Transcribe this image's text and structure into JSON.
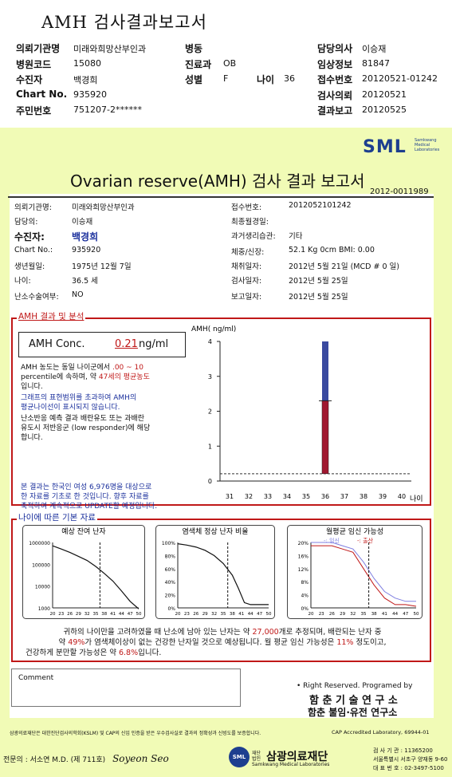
{
  "top_title": "AMH 검사결과보고서",
  "header": {
    "rows": [
      {
        "l1": "의뢰기관명",
        "v1": "미래와희망산부인과",
        "l2": "병동",
        "v2": "",
        "l3": "담당의사",
        "v3": "이승재"
      },
      {
        "l1": "병원코드",
        "v1": "15080",
        "l2": "진료과",
        "v2": "OB",
        "l3": "임상정보",
        "v3": "81847"
      },
      {
        "l1": "수진자",
        "v1": "백경희",
        "l2": "성별",
        "v2": "F",
        "l2b": "나이",
        "v2b": "36",
        "l3": "접수번호",
        "v3": "20120521-01242"
      },
      {
        "l1": "Chart No.",
        "v1": "935920",
        "l2": "",
        "v2": "",
        "l3": "검사의뢰",
        "v3": "20120521"
      },
      {
        "l1": "주민번호",
        "v1": "751207-2******",
        "l2": "",
        "v2": "",
        "l3": "결과보고",
        "v3": "20120525"
      }
    ]
  },
  "logo": {
    "text": "SML",
    "sub1": "Samkwang",
    "sub2": "Medical",
    "sub3": "Laboratories"
  },
  "report": {
    "title": "Ovarian reserve(AMH) 검사 결과 보고서",
    "number": "2012-0011989",
    "left": [
      {
        "label": "의뢰기관명:",
        "value": "미래와희망산부인과"
      },
      {
        "label": "담당의:",
        "value": "이승재"
      },
      {
        "label": "수진자:",
        "value": "백경희"
      },
      {
        "label": "Chart No.:",
        "value": "935920"
      },
      {
        "label": "생년월일:",
        "value": "1975년 12월 7일"
      },
      {
        "label": "나이:",
        "value": "36.5 세"
      },
      {
        "label": "난소수술여부:",
        "value": "NO"
      }
    ],
    "right": [
      {
        "label": "접수번호:",
        "value": "2012052101242"
      },
      {
        "label": "최종월경일:",
        "value": ""
      },
      {
        "label": "과거생리습관:",
        "value": "기타"
      },
      {
        "label": "체중/신장:",
        "value": "52.1 Kg      0cm   BMI:  0.00"
      },
      {
        "label": "채취일자:",
        "value": "2012년 5월 21일   (MCD # 0 일)"
      },
      {
        "label": "검사일자:",
        "value": "2012년 5월 25일"
      },
      {
        "label": "보고일자:",
        "value": "2012년 5월 25일"
      }
    ]
  },
  "amh": {
    "section_title": "AMH 결과 및 분석",
    "conc_label": "AMH Conc.",
    "conc_value": "0.21",
    "conc_unit": "ng/ml",
    "p1a": "AMH 농도는 동일 나이군에서",
    "p1b": ".00 ~ 10",
    "p1c": "percentile에 속하며, 약",
    "p1d": "47세의 평균농도",
    "p1e": "입니다.",
    "p2a": "그래프의 표현범위를 초과하여 AMH의",
    "p2b": "평균나이선이 표시되지 않습니다.",
    "p3a": "난소반응 예측 결과 배란유도 또는 과배란",
    "p3b": "유도시 저반응군 (low responder)에 해당",
    "p3c": "합니다.",
    "p4a": "본 결과는 한국인 여성 6,976명을 대상으로",
    "p4b": "한 자료를 기초로 한 것입니다. 향후 자료를",
    "p4c": "축적하여 계속적으로 UPDATE할 예정입니다."
  },
  "age_section": {
    "title": "나이에 따른 기본 자료",
    "chart1_title": "예상 잔여 난자",
    "chart2_title": "염색체 정상 난자 비율",
    "chart3_title": "월평균 임신 가능성",
    "chart3_legend": "-: 임신- -: 출산",
    "s1a": "귀하의 나이만을 고려하였을 때 난소에 남아 있는 난자는 약",
    "s1b": "27,000",
    "s1c": "개로 추정되며, 배란되는 난자 중",
    "s2a": "약",
    "s2b": "49%",
    "s2c": "가 염색체이상이 없는 건강한 난자일 것으로 예상됩니다. 월 평균 임신 가능성은",
    "s2d": "11%",
    "s2e": "정도이고,",
    "s3a": "건강하게 분만할 가능성은 약",
    "s3b": "6.8%",
    "s3c": "입니다."
  },
  "comment_label": "Comment",
  "rights": "• Right Reserved. Programed by",
  "lab1": "함 춘 기 술 연 구 소",
  "lab2": "함춘 불임·유전 연구소",
  "fine_print": "삼광의료재단은 대한진단검사의학회(KSLM) 및 CAP의 신임 인증을 받은 우수검사실로 결과의 정확성과 신빙도를 보증합니다.",
  "cap": "CAP  Accredited  Laboratory,  69944-01",
  "doctor": "전문의 : 서소연 M.D. (제 711호)",
  "foundation": "삼광의료재단",
  "foundation_sub": "Samkwang Medical Laboratories",
  "foundation_prefix": "재단법인",
  "contact1": "검 사 기 관 : 11365200",
  "contact2": "서울특별시 서초구 양재동 9-60",
  "contact3": "대 표 번 호 : 02-3497-5100",
  "chart_data": [
    {
      "type": "bar",
      "ylabel": "AMH( ng/ml)",
      "xlabel": "나이",
      "ylim": [
        0,
        4
      ],
      "yticks": [
        0,
        1,
        2,
        3,
        4
      ],
      "categories": [
        "31",
        "32",
        "33",
        "34",
        "35",
        "36",
        "37",
        "38",
        "39",
        "40"
      ],
      "series": [
        {
          "values": [
            null,
            null,
            null,
            null,
            null,
            2.3,
            null,
            null,
            null,
            null
          ],
          "color": "#a01830"
        },
        {
          "values": [
            null,
            null,
            null,
            null,
            null,
            4.0,
            null,
            null,
            null,
            null
          ],
          "color": "#3a4aa0"
        }
      ],
      "reference_line": 0.21,
      "bar_split": 2.3
    },
    {
      "type": "line",
      "title": "예상 잔여 난자",
      "yscale": "log",
      "yticks": [
        "1000000",
        "100000",
        "10000",
        "1000"
      ],
      "xticks": [
        "20",
        "23",
        "26",
        "29",
        "32",
        "35",
        "38",
        "41",
        "44",
        "47",
        "50"
      ],
      "x": [
        20,
        23,
        26,
        29,
        32,
        35,
        38,
        41,
        44,
        47,
        50
      ],
      "y": [
        700000,
        500000,
        350000,
        230000,
        150000,
        80000,
        38000,
        17000,
        6000,
        2000,
        900
      ],
      "marker_x": 36.5
    },
    {
      "type": "line",
      "title": "염색체 정상 난자 비율",
      "yticks": [
        "100%",
        "80%",
        "60%",
        "40%",
        "20%",
        "0%"
      ],
      "xticks": [
        "20",
        "23",
        "26",
        "29",
        "32",
        "35",
        "38",
        "41",
        "44",
        "47",
        "50"
      ],
      "x": [
        20,
        23,
        26,
        29,
        32,
        35,
        38,
        40,
        42,
        44,
        47,
        50
      ],
      "y": [
        98,
        96,
        93,
        88,
        80,
        68,
        50,
        30,
        8,
        5,
        5,
        5
      ],
      "marker_x": 36.5
    },
    {
      "type": "line",
      "title": "월평균 임신 가능성",
      "yticks": [
        "20%",
        "16%",
        "12%",
        "8%",
        "4%",
        "0%"
      ],
      "xticks": [
        "20",
        "23",
        "26",
        "29",
        "32",
        "35",
        "38",
        "41",
        "44",
        "47",
        "50"
      ],
      "x": [
        20,
        23,
        26,
        29,
        32,
        35,
        38,
        41,
        44,
        47,
        50
      ],
      "series": [
        {
          "name": "임신",
          "y": [
            20,
            20,
            20,
            19,
            18,
            14,
            9,
            5,
            3,
            2,
            2
          ],
          "color": "#7f7fe0"
        },
        {
          "name": "출산",
          "y": [
            19,
            19,
            19,
            18,
            17,
            12,
            7,
            3,
            1,
            1,
            0.5
          ],
          "color": "#c01818"
        }
      ],
      "marker_x": 36.5
    }
  ]
}
